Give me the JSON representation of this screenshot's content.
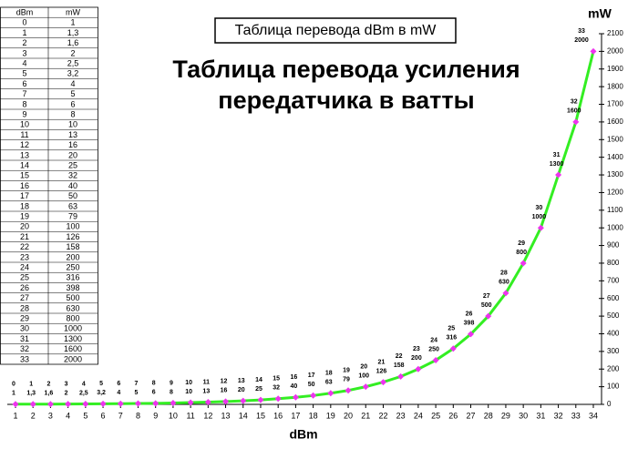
{
  "table": {
    "header": [
      "dBm",
      "mW"
    ],
    "rows": [
      [
        "0",
        "1"
      ],
      [
        "1",
        "1,3"
      ],
      [
        "2",
        "1,6"
      ],
      [
        "3",
        "2"
      ],
      [
        "4",
        "2,5"
      ],
      [
        "5",
        "3,2"
      ],
      [
        "6",
        "4"
      ],
      [
        "7",
        "5"
      ],
      [
        "8",
        "6"
      ],
      [
        "9",
        "8"
      ],
      [
        "10",
        "10"
      ],
      [
        "11",
        "13"
      ],
      [
        "12",
        "16"
      ],
      [
        "13",
        "20"
      ],
      [
        "14",
        "25"
      ],
      [
        "15",
        "32"
      ],
      [
        "16",
        "40"
      ],
      [
        "17",
        "50"
      ],
      [
        "18",
        "63"
      ],
      [
        "19",
        "79"
      ],
      [
        "20",
        "100"
      ],
      [
        "21",
        "126"
      ],
      [
        "22",
        "158"
      ],
      [
        "23",
        "200"
      ],
      [
        "24",
        "250"
      ],
      [
        "25",
        "316"
      ],
      [
        "26",
        "398"
      ],
      [
        "27",
        "500"
      ],
      [
        "28",
        "630"
      ],
      [
        "29",
        "800"
      ],
      [
        "30",
        "1000"
      ],
      [
        "31",
        "1300"
      ],
      [
        "32",
        "1600"
      ],
      [
        "33",
        "2000"
      ]
    ]
  },
  "chart_data": {
    "type": "line",
    "title": "Таблица перевода dBm в mW",
    "subtitle": [
      "Таблица перевода усиления",
      "передатчика в ватты"
    ],
    "x_label": "dBm",
    "y_label": "mW",
    "x": [
      1,
      2,
      3,
      4,
      5,
      6,
      7,
      8,
      9,
      10,
      11,
      12,
      13,
      14,
      15,
      16,
      17,
      18,
      19,
      20,
      21,
      22,
      23,
      24,
      25,
      26,
      27,
      28,
      29,
      30,
      31,
      32,
      33,
      34
    ],
    "xlim": [
      1,
      34
    ],
    "xticks": [
      1,
      2,
      3,
      4,
      5,
      6,
      7,
      8,
      9,
      10,
      11,
      12,
      13,
      14,
      15,
      16,
      17,
      18,
      19,
      20,
      21,
      22,
      23,
      24,
      25,
      26,
      27,
      28,
      29,
      30,
      31,
      32,
      33,
      34
    ],
    "ylim": [
      0,
      2100
    ],
    "yticks": [
      0,
      100,
      200,
      300,
      400,
      500,
      600,
      700,
      800,
      900,
      1000,
      1100,
      1200,
      1300,
      1400,
      1500,
      1600,
      1700,
      1800,
      1900,
      2000,
      2100
    ],
    "series": [
      {
        "color": "#33ee22",
        "marker_color": "#ee33ee",
        "dbm": [
          0,
          1,
          2,
          3,
          4,
          5,
          6,
          7,
          8,
          9,
          10,
          11,
          12,
          13,
          14,
          15,
          16,
          17,
          18,
          19,
          20,
          21,
          22,
          23,
          24,
          25,
          26,
          27,
          28,
          29,
          30,
          31,
          32,
          33
        ],
        "values": [
          1,
          1.3,
          1.6,
          2,
          2.5,
          3.2,
          4,
          5,
          6,
          8,
          10,
          13,
          16,
          20,
          25,
          32,
          40,
          50,
          63,
          79,
          100,
          126,
          158,
          200,
          250,
          316,
          398,
          500,
          630,
          800,
          1000,
          1300,
          1600,
          2000
        ],
        "value_labels": [
          "1",
          "1,3",
          "1,6",
          "2",
          "2,5",
          "3,2",
          "4",
          "5",
          "6",
          "8",
          "10",
          "13",
          "16",
          "20",
          "25",
          "32",
          "40",
          "50",
          "63",
          "79",
          "100",
          "126",
          "158",
          "200",
          "250",
          "316",
          "398",
          "500",
          "630",
          "800",
          "1000",
          "1300",
          "1600",
          "2000"
        ]
      }
    ]
  }
}
